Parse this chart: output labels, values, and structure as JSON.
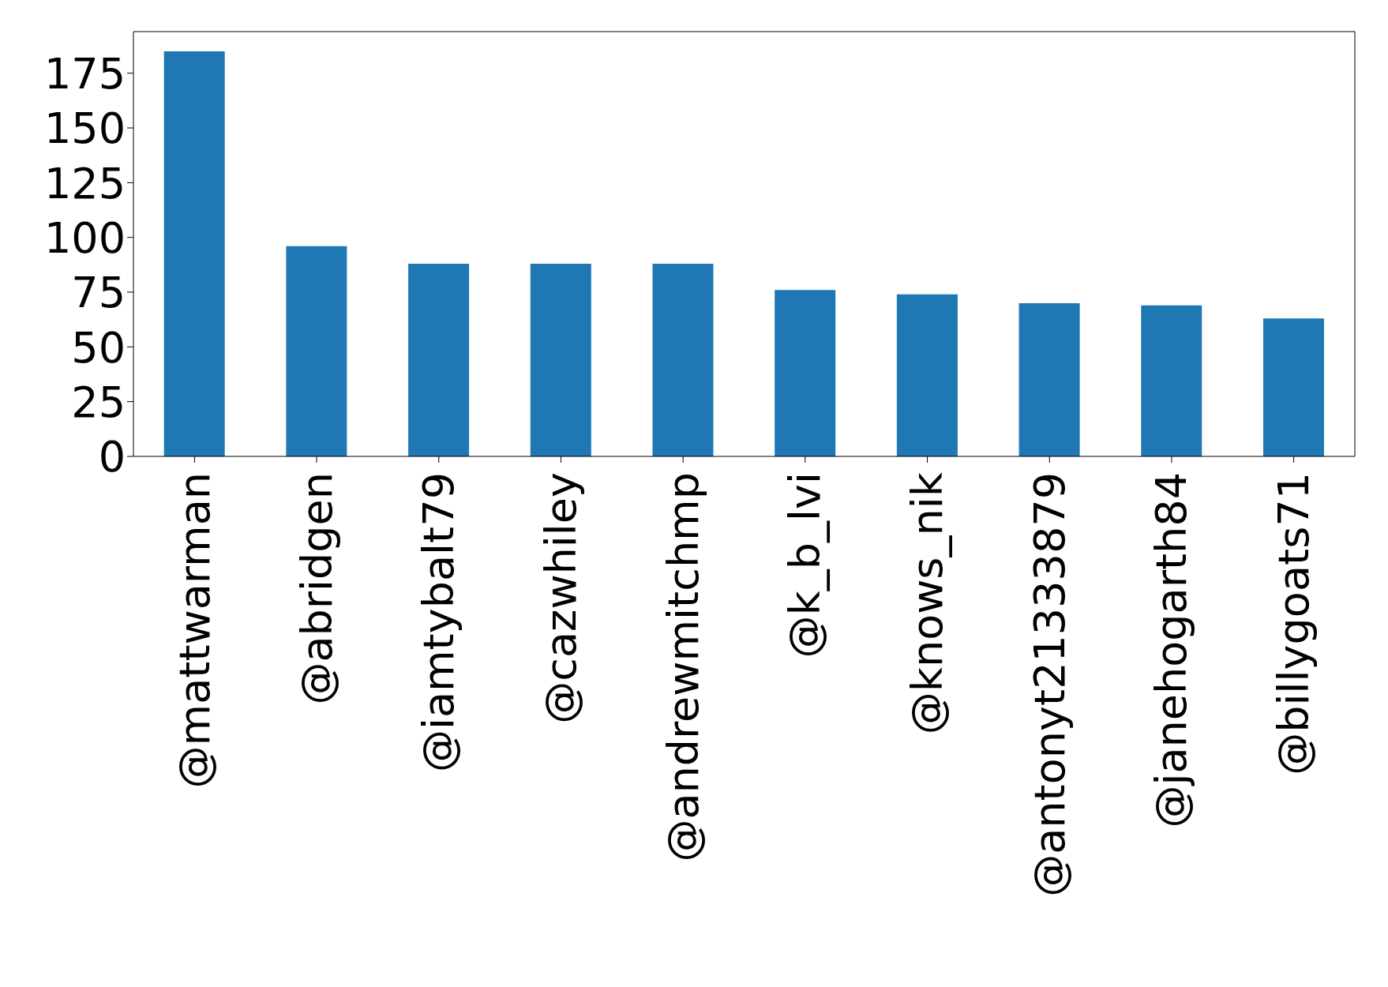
{
  "chart_data": {
    "type": "bar",
    "categories": [
      "@mattwarman",
      "@abridgen",
      "@iamtybalt79",
      "@cazwhiley",
      "@andrewmitchmp",
      "@k_b_lvi",
      "@knows_nik",
      "@antonyt21333879",
      "@janehogarth84",
      "@billygoats71"
    ],
    "values": [
      185,
      96,
      88,
      88,
      88,
      76,
      74,
      70,
      69,
      63
    ],
    "color": "#1f77b4",
    "ylim": [
      0,
      194
    ],
    "yticks": [
      0,
      25,
      50,
      75,
      100,
      125,
      150,
      175
    ],
    "grid": false
  }
}
